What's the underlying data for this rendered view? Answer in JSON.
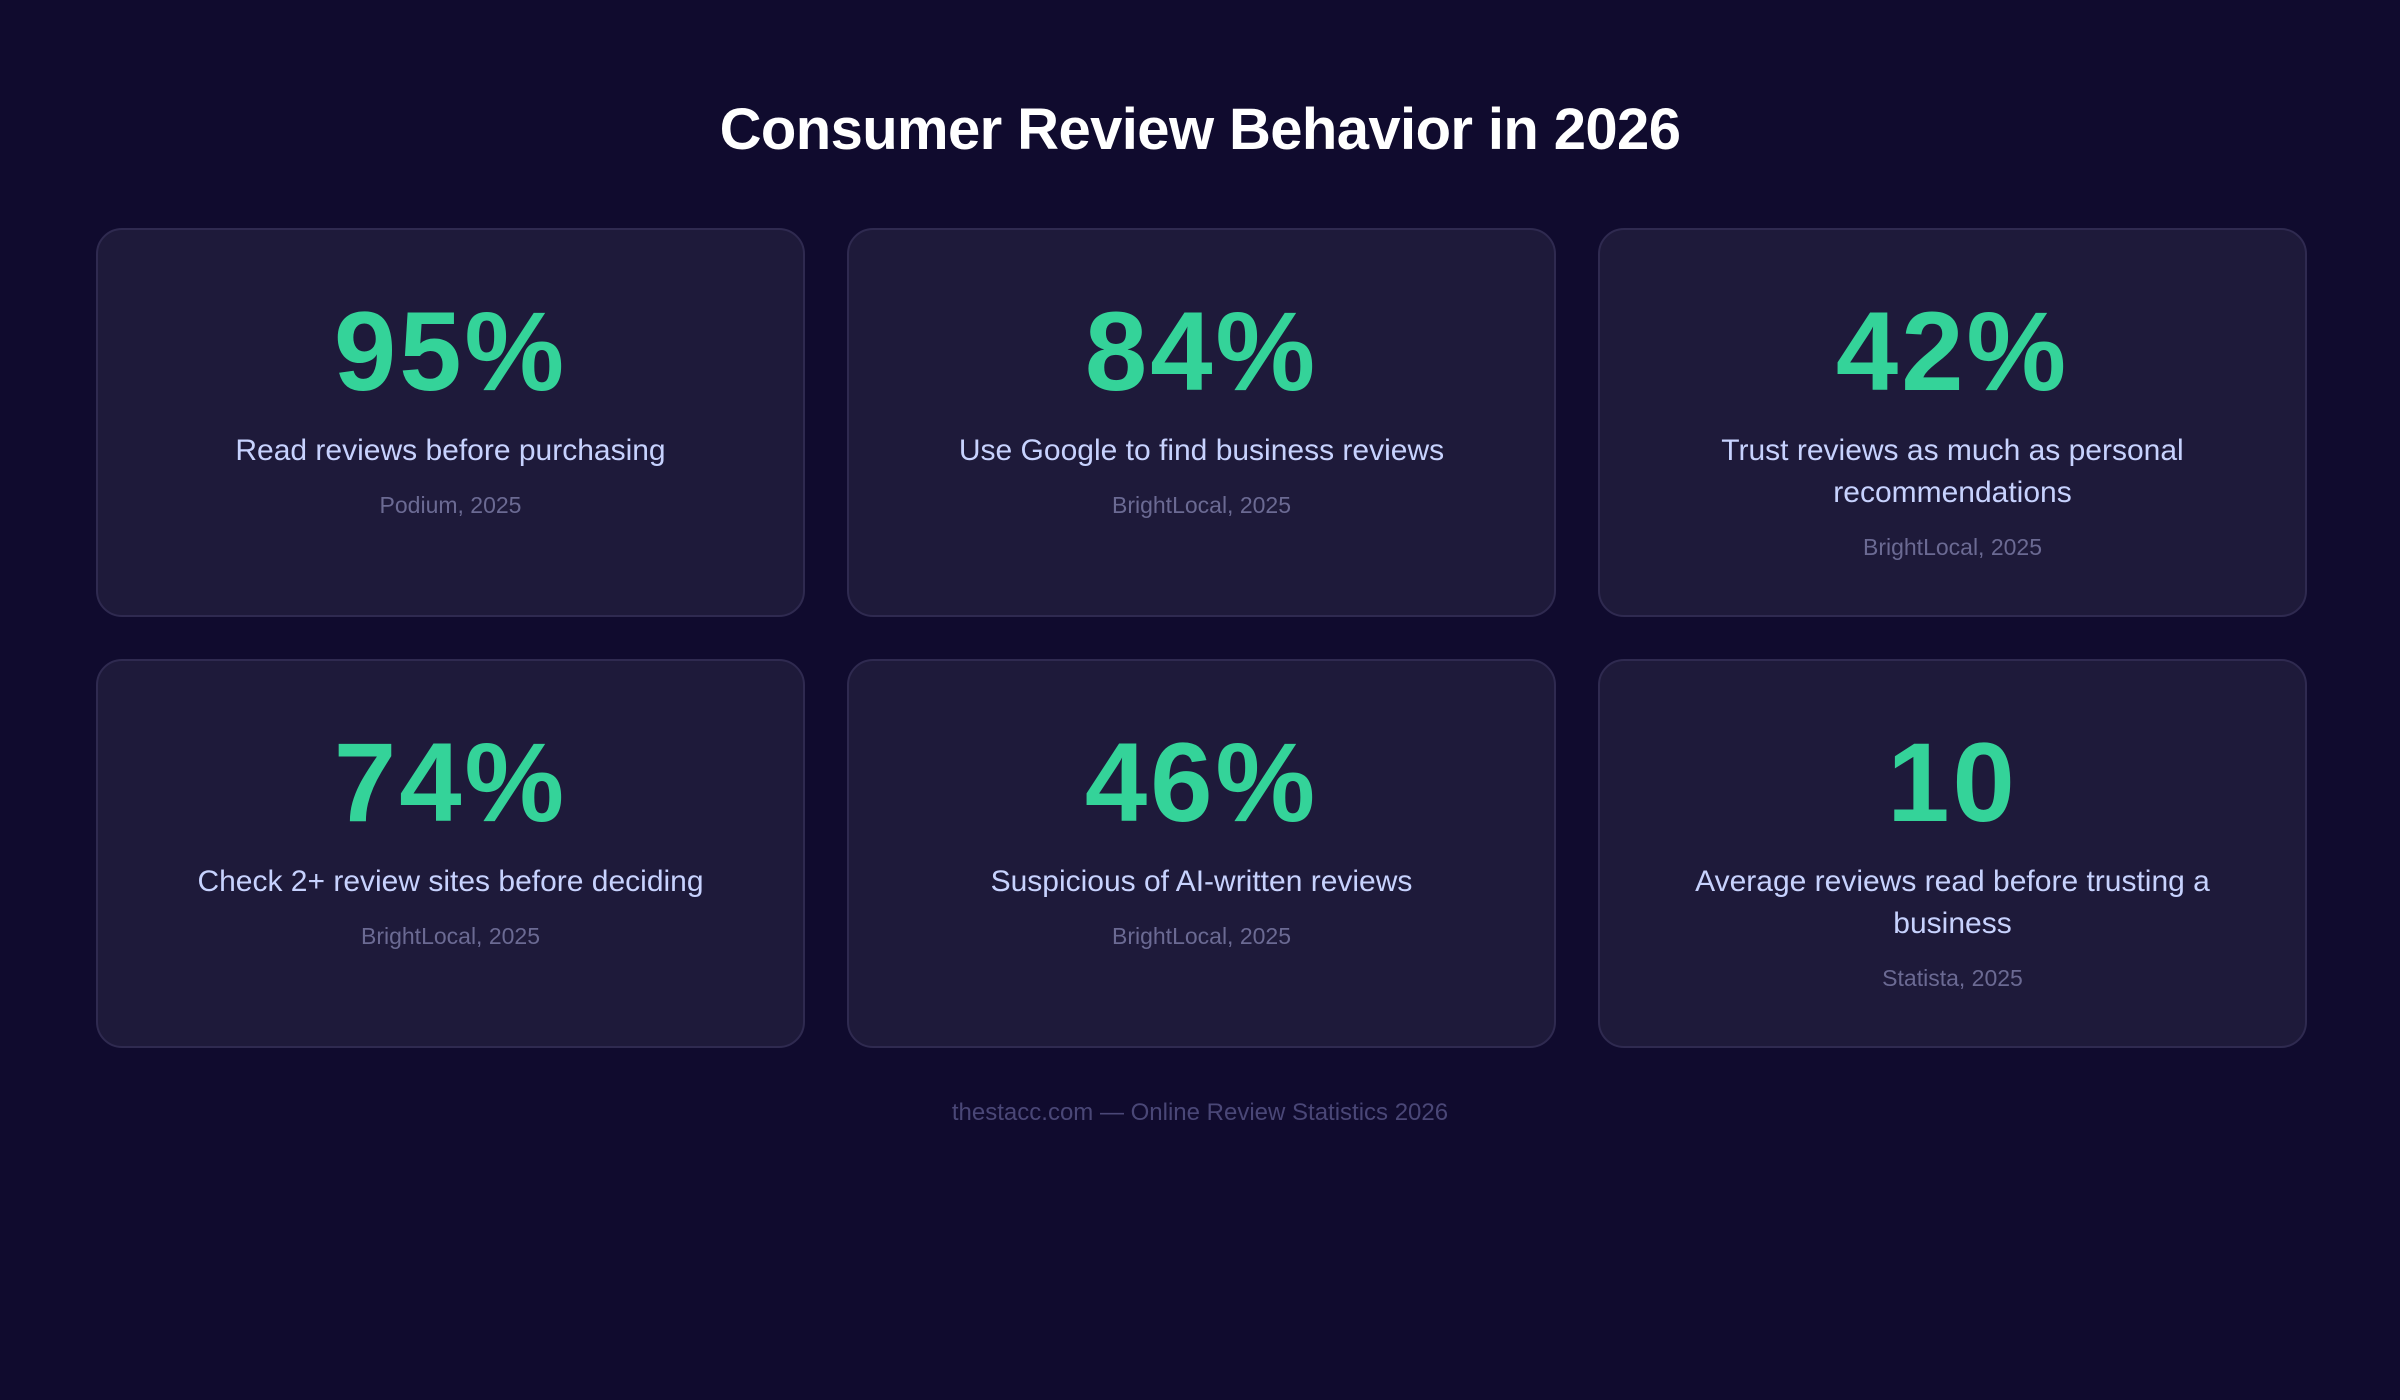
{
  "header": {
    "title": "Consumer Review Behavior in 2026"
  },
  "colors": {
    "background": "#100b2e",
    "card_background": "#1e1a3a",
    "card_border": "#2f2a50",
    "accent": "#34d399",
    "label": "#c7d2fe",
    "source": "#6b6a93",
    "footer": "#4a4777"
  },
  "stats": [
    {
      "value": "95%",
      "label": "Read reviews before purchasing",
      "source": "Podium, 2025"
    },
    {
      "value": "84%",
      "label": "Use Google to find business reviews",
      "source": "BrightLocal, 2025"
    },
    {
      "value": "42%",
      "label": "Trust reviews as much as personal recommendations",
      "source": "BrightLocal, 2025"
    },
    {
      "value": "74%",
      "label": "Check 2+ review sites before deciding",
      "source": "BrightLocal, 2025"
    },
    {
      "value": "46%",
      "label": "Suspicious of AI-written reviews",
      "source": "BrightLocal, 2025"
    },
    {
      "value": "10",
      "label": "Average reviews read before trusting a business",
      "source": "Statista, 2025"
    }
  ],
  "footer": {
    "text": "thestacc.com — Online Review Statistics 2026"
  }
}
